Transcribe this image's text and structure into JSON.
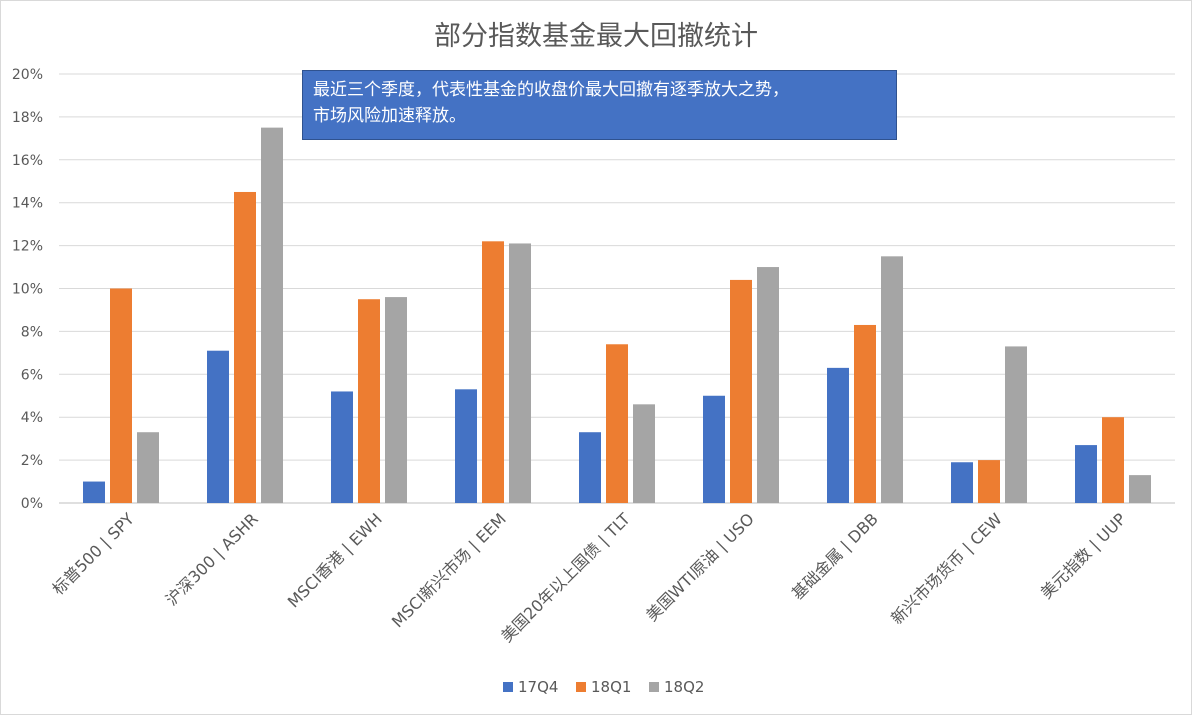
{
  "chart_data": {
    "type": "bar",
    "title": "部分指数基金最大回撤统计",
    "categories": [
      "标普500 | SPY",
      "沪深300 | ASHR",
      "MSCI香港 | EWH",
      "MSCI新兴市场 | EEM",
      "美国20年以上国债 | TLT",
      "美国WTI原油 | USO",
      "基础金属 | DBB",
      "新兴市场货币 | CEW",
      "美元指数 | UUP"
    ],
    "series": [
      {
        "name": "17Q4",
        "color": "#4472c4",
        "values": [
          1.0,
          7.1,
          5.2,
          5.3,
          3.3,
          5.0,
          6.3,
          1.9,
          2.7
        ]
      },
      {
        "name": "18Q1",
        "color": "#ed7d31",
        "values": [
          10.0,
          14.5,
          9.5,
          12.2,
          7.4,
          10.4,
          8.3,
          2.0,
          4.0
        ]
      },
      {
        "name": "18Q2",
        "color": "#a5a5a5",
        "values": [
          3.3,
          17.5,
          9.6,
          12.1,
          4.6,
          11.0,
          11.5,
          7.3,
          1.3
        ]
      }
    ],
    "ylim": [
      0,
      20
    ],
    "yticks": [
      0,
      2,
      4,
      6,
      8,
      10,
      12,
      14,
      16,
      18,
      20
    ],
    "ytick_labels": [
      "0%",
      "2%",
      "4%",
      "6%",
      "8%",
      "10%",
      "12%",
      "14%",
      "16%",
      "18%",
      "20%"
    ],
    "ytick_suffix": "%",
    "grid": true,
    "legend": "bottom",
    "annotation_lines": [
      "最近三个季度，代表性基金的收盘价最大回撤有逐季放大之势，",
      "市场风险加速释放。"
    ]
  }
}
